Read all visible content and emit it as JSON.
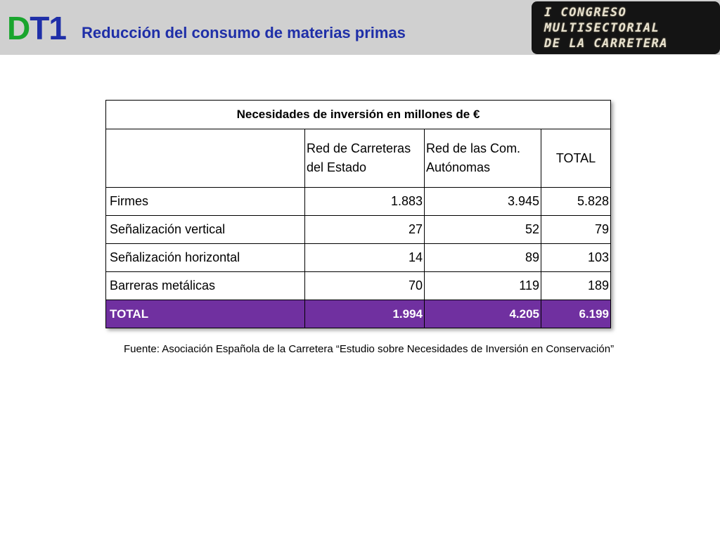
{
  "header": {
    "code_d": "D",
    "code_t": "T1",
    "title": "Reducción del consumo de materias primas",
    "background_color": "#d0d0d0",
    "code_d_color": "#1aa52e",
    "title_color": "#1f2fa8"
  },
  "logo": {
    "line1": "I CONGRESO",
    "line2": "MULTISECTORIAL",
    "line3": "DE LA CARRETERA"
  },
  "table": {
    "caption": "Necesidades de inversión en millones de €",
    "columns": [
      " Red de Carreteras del Estado",
      " Red de las Com. Autónomas",
      "TOTAL"
    ],
    "rows": [
      {
        "label": "Firmes",
        "values": [
          "1.883",
          "3.945",
          "5.828"
        ]
      },
      {
        "label": "Señalización vertical",
        "values": [
          "27",
          "52",
          "79"
        ]
      },
      {
        "label": "Señalización horizontal",
        "values": [
          "14",
          "89",
          "103"
        ]
      },
      {
        "label": "Barreras metálicas",
        "values": [
          "70",
          "119",
          "189"
        ]
      }
    ],
    "total": {
      "label": "TOTAL",
      "values": [
        "1.994",
        "4.205",
        "6.199"
      ]
    },
    "total_row_color": "#7030a0"
  },
  "source": "Fuente: Asociación Española de la Carretera “Estudio sobre Necesidades de Inversión en Conservación”"
}
